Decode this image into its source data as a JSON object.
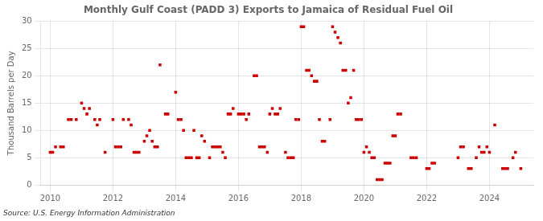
{
  "chart_data": {
    "type": "scatter",
    "title": "Monthly Gulf Coast (PADD 3) Exports to Jamaica of Residual Fuel Oil",
    "ylabel": "Thousand Barrels per Day",
    "source": "Source: U.S. Energy Information Administration",
    "color": "#cc0000",
    "marker": "square",
    "grid": true,
    "xlim": [
      2009.7,
      2025.4
    ],
    "ylim": [
      0,
      30
    ],
    "xticks": [
      2010,
      2012,
      2014,
      2016,
      2018,
      2020,
      2022,
      2024
    ],
    "yticks": [
      0,
      5,
      10,
      15,
      20,
      25,
      30
    ],
    "x": [
      2010.0,
      2010.08,
      2010.17,
      2010.33,
      2010.42,
      2010.58,
      2010.67,
      2010.83,
      2011.0,
      2011.08,
      2011.17,
      2011.25,
      2011.42,
      2011.5,
      2011.58,
      2011.75,
      2012.0,
      2012.08,
      2012.17,
      2012.25,
      2012.33,
      2012.5,
      2012.58,
      2012.67,
      2012.75,
      2012.83,
      2013.0,
      2013.08,
      2013.17,
      2013.25,
      2013.33,
      2013.42,
      2013.5,
      2013.67,
      2013.75,
      2014.0,
      2014.08,
      2014.17,
      2014.25,
      2014.33,
      2014.42,
      2014.5,
      2014.58,
      2014.67,
      2014.75,
      2014.83,
      2014.92,
      2015.08,
      2015.17,
      2015.25,
      2015.33,
      2015.42,
      2015.5,
      2015.58,
      2015.67,
      2015.75,
      2015.83,
      2016.0,
      2016.08,
      2016.17,
      2016.25,
      2016.33,
      2016.5,
      2016.58,
      2016.67,
      2016.75,
      2016.83,
      2016.92,
      2017.0,
      2017.08,
      2017.17,
      2017.25,
      2017.33,
      2017.5,
      2017.58,
      2017.67,
      2017.75,
      2017.83,
      2017.92,
      2018.0,
      2018.08,
      2018.17,
      2018.25,
      2018.33,
      2018.42,
      2018.5,
      2018.58,
      2018.67,
      2018.75,
      2018.92,
      2019.0,
      2019.08,
      2019.17,
      2019.25,
      2019.33,
      2019.42,
      2019.5,
      2019.58,
      2019.67,
      2019.75,
      2019.83,
      2019.92,
      2020.0,
      2020.08,
      2020.17,
      2020.25,
      2020.33,
      2020.42,
      2020.5,
      2020.58,
      2020.67,
      2020.75,
      2020.83,
      2020.92,
      2021.0,
      2021.08,
      2021.17,
      2021.5,
      2021.58,
      2021.67,
      2022.0,
      2022.08,
      2022.17,
      2022.25,
      2023.0,
      2023.08,
      2023.17,
      2023.33,
      2023.42,
      2023.58,
      2023.67,
      2023.75,
      2023.83,
      2023.92,
      2024.0,
      2024.17,
      2024.42,
      2024.5,
      2024.58,
      2024.75,
      2024.83,
      2025.0
    ],
    "values": [
      6,
      6,
      7,
      7,
      7,
      12,
      12,
      12,
      15,
      14,
      13,
      14,
      12,
      11,
      12,
      6,
      12,
      7,
      7,
      7,
      12,
      12,
      11,
      6,
      6,
      6,
      8,
      9,
      10,
      8,
      7,
      7,
      22,
      13,
      13,
      17,
      12,
      12,
      10,
      5,
      5,
      5,
      10,
      5,
      5,
      9,
      8,
      5,
      7,
      7,
      7,
      7,
      6,
      5,
      13,
      13,
      14,
      13,
      13,
      13,
      12,
      13,
      20,
      20,
      7,
      7,
      7,
      6,
      13,
      14,
      13,
      13,
      14,
      6,
      5,
      5,
      5,
      12,
      12,
      29,
      29,
      21,
      21,
      20,
      19,
      19,
      12,
      8,
      8,
      12,
      29,
      28,
      27,
      26,
      21,
      21,
      15,
      16,
      21,
      12,
      12,
      12,
      6,
      7,
      6,
      5,
      5,
      1,
      1,
      1,
      4,
      4,
      4,
      9,
      9,
      13,
      13,
      5,
      5,
      5,
      3,
      3,
      4,
      4,
      5,
      7,
      7,
      3,
      3,
      5,
      7,
      6,
      6,
      7,
      6,
      11,
      3,
      3,
      3,
      5,
      6,
      3
    ]
  }
}
